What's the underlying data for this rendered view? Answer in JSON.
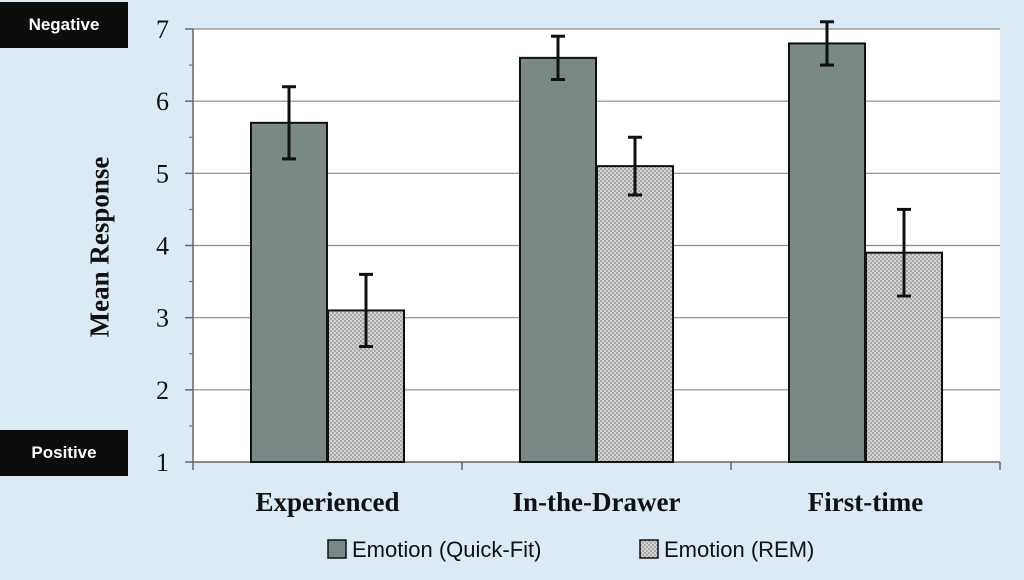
{
  "badges": {
    "negative": "Negative",
    "positive": "Positive"
  },
  "colors": {
    "background": "#dbebf5",
    "plot_bg": "#ffffff",
    "quick_fit": "#7a8886",
    "rem": "#d4d4d4",
    "axis": "#8a8a8a"
  },
  "chart_data": {
    "type": "bar",
    "title": "",
    "xlabel": "",
    "ylabel": "Mean Response",
    "ylim": [
      1,
      7
    ],
    "yticks": [
      "1",
      "2",
      "3",
      "4",
      "5",
      "6",
      "7"
    ],
    "grid": true,
    "legend": "bottom",
    "categories": [
      "Experienced",
      "In-the-Drawer",
      "First-time"
    ],
    "series": [
      {
        "name": "Emotion (Quick-Fit)",
        "values": [
          5.7,
          6.6,
          6.8
        ],
        "error": [
          0.5,
          0.3,
          0.3
        ],
        "color": "#7a8886"
      },
      {
        "name": "Emotion (REM)",
        "values": [
          3.1,
          5.1,
          3.9
        ],
        "error": [
          0.5,
          0.4,
          0.6
        ],
        "color": "#d4d4d4"
      }
    ]
  }
}
